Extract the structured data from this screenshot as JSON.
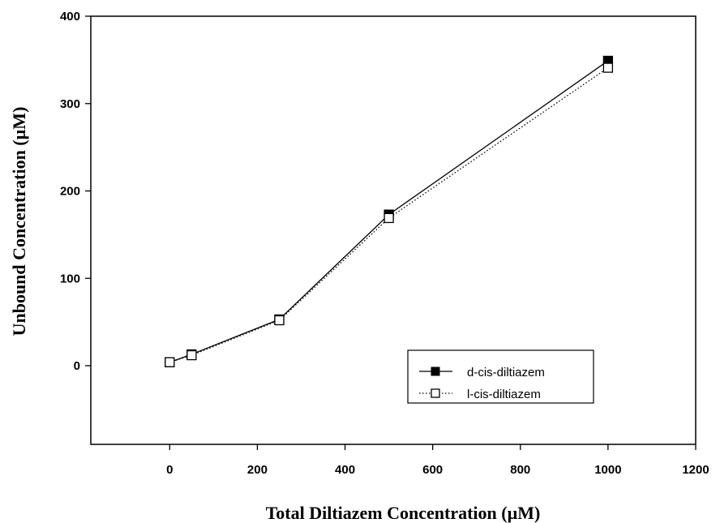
{
  "chart_data": {
    "type": "line",
    "title": "",
    "xlabel": "Total Diltiazem Concentration (µM)",
    "ylabel": "Unbound Concentration (µM)",
    "xlim": [
      -180,
      1200
    ],
    "ylim": [
      -90,
      400
    ],
    "xticks": [
      0,
      200,
      400,
      600,
      800,
      1000,
      1200
    ],
    "yticks": [
      0,
      100,
      200,
      300,
      400
    ],
    "grid": false,
    "legend_position": "bottom-right",
    "series": [
      {
        "name": "d-cis-diltiazem",
        "marker": "filled-square",
        "line_style": "solid",
        "color": "#000000",
        "x": [
          0,
          50,
          250,
          500,
          1000
        ],
        "y": [
          4,
          13,
          53,
          173,
          349
        ]
      },
      {
        "name": "l-cis-diltiazem",
        "marker": "open-square",
        "line_style": "dotted",
        "color": "#000000",
        "x": [
          0,
          50,
          250,
          500,
          1000
        ],
        "y": [
          4,
          12,
          52,
          169,
          341
        ]
      }
    ]
  }
}
